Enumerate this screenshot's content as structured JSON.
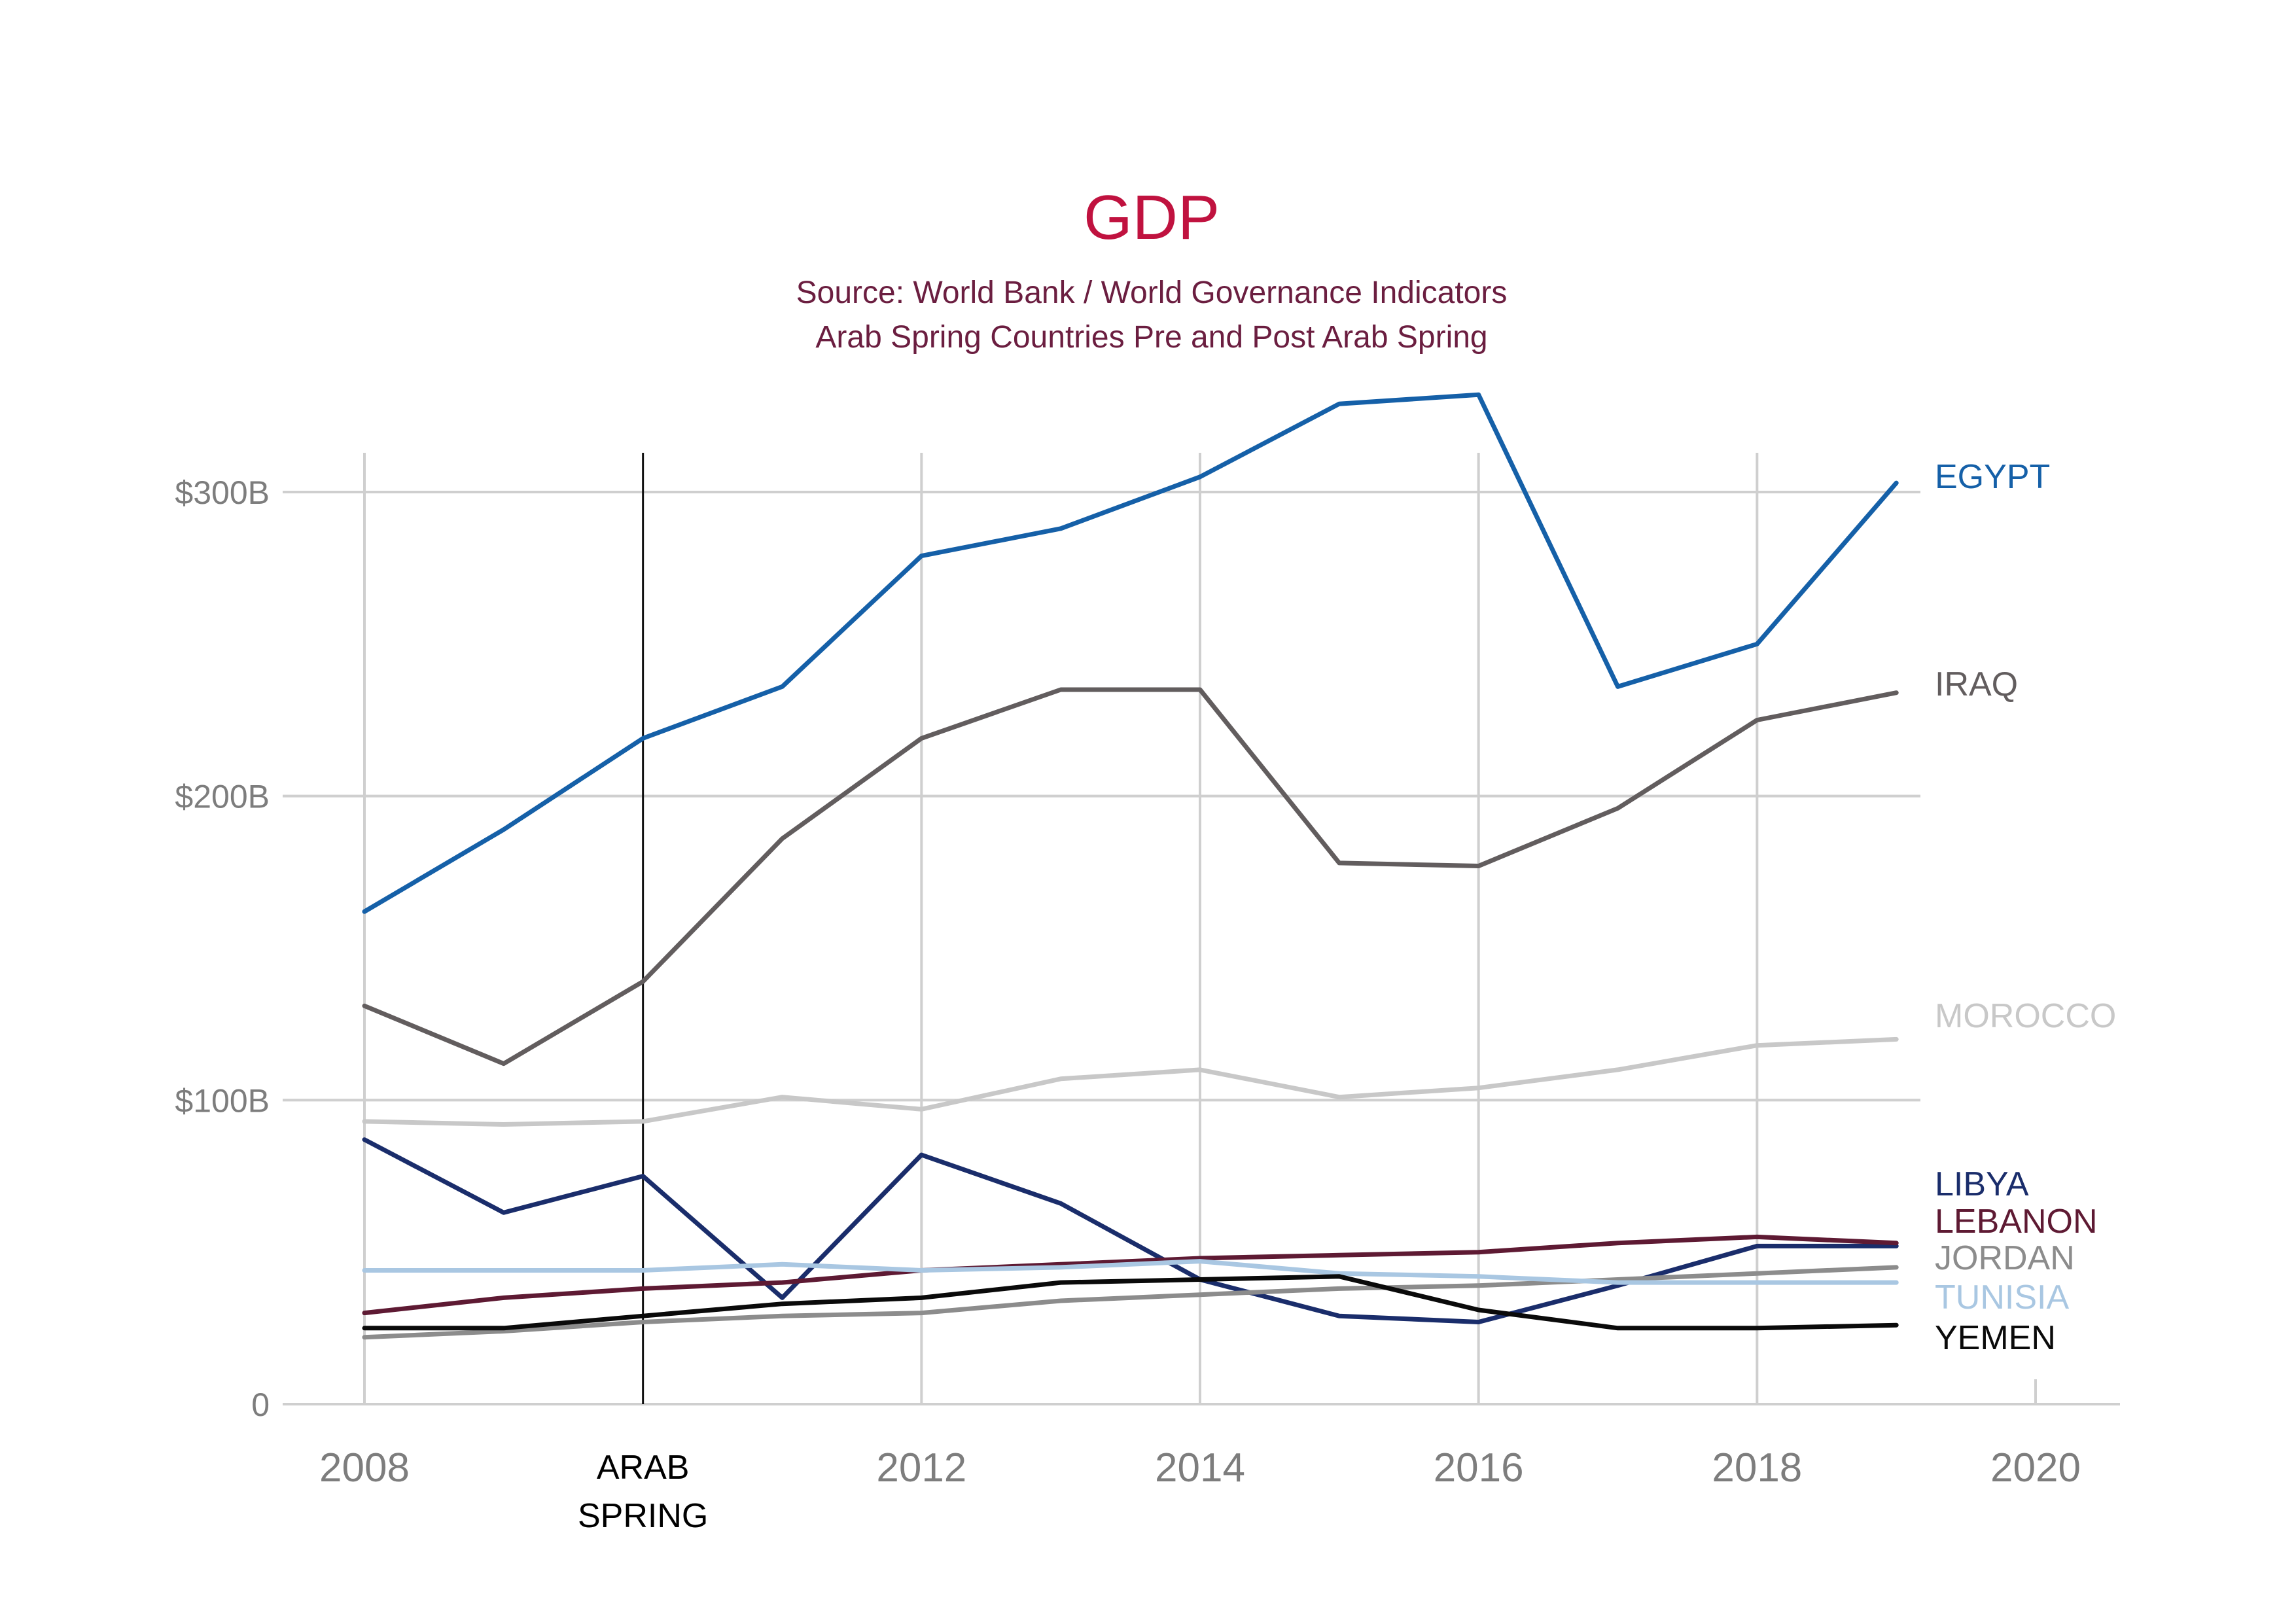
{
  "chart_data": {
    "type": "line",
    "title": "GDP",
    "subtitle_lines": [
      "Source: World Bank / World Governance Indicators",
      "Arab Spring Countries Pre and Post Arab Spring"
    ],
    "xlabel": "",
    "ylabel": "",
    "x": [
      2008,
      2009,
      2010,
      2011,
      2012,
      2013,
      2014,
      2015,
      2016,
      2017,
      2018,
      2019
    ],
    "xlim": [
      2008,
      2020
    ],
    "ylim": [
      0,
      300
    ],
    "x_ticks": [
      {
        "value": 2008,
        "label": "2008"
      },
      {
        "value": 2012,
        "label": "2012"
      },
      {
        "value": 2014,
        "label": "2014"
      },
      {
        "value": 2016,
        "label": "2016"
      },
      {
        "value": 2018,
        "label": "2018"
      },
      {
        "value": 2020,
        "label": "2020"
      }
    ],
    "y_ticks": [
      {
        "value": 0,
        "label": "0"
      },
      {
        "value": 100,
        "label": "$100B"
      },
      {
        "value": 200,
        "label": "$200B"
      },
      {
        "value": 300,
        "label": "$300B"
      }
    ],
    "grid": true,
    "legend": "inline labels at right end of each line",
    "annotation": {
      "x": 2010,
      "label_lines": [
        "ARAB",
        "SPRING"
      ]
    },
    "series": [
      {
        "name": "EGYPT",
        "color": "#1560a8",
        "values": [
          162,
          189,
          219,
          236,
          279,
          288,
          305,
          329,
          332,
          236,
          250,
          303
        ]
      },
      {
        "name": "IRAQ",
        "color": "#625d5e",
        "values": [
          131,
          112,
          139,
          186,
          219,
          235,
          235,
          178,
          177,
          196,
          225,
          234
        ]
      },
      {
        "name": "MOROCCO",
        "color": "#c8c8c8",
        "values": [
          93,
          92,
          93,
          101,
          97,
          107,
          110,
          101,
          104,
          110,
          118,
          120
        ]
      },
      {
        "name": "LIBYA",
        "color": "#1a2d6b",
        "values": [
          87,
          63,
          75,
          35,
          82,
          66,
          41,
          29,
          27,
          39,
          52,
          52
        ]
      },
      {
        "name": "LEBANON",
        "color": "#5e1a33",
        "values": [
          30,
          35,
          38,
          40,
          44,
          46,
          48,
          49,
          50,
          53,
          55,
          53
        ]
      },
      {
        "name": "JORDAN",
        "color": "#8c8c8c",
        "values": [
          22,
          24,
          27,
          29,
          30,
          34,
          36,
          38,
          39,
          41,
          43,
          45
        ]
      },
      {
        "name": "TUNISIA",
        "color": "#a9c7e2",
        "values": [
          44,
          44,
          44,
          46,
          44,
          45,
          47,
          43,
          42,
          40,
          40,
          40
        ]
      },
      {
        "name": "YEMEN",
        "color": "#0a0a0a",
        "values": [
          25,
          25,
          29,
          33,
          35,
          40,
          41,
          42,
          31,
          25,
          25,
          26
        ]
      }
    ]
  }
}
